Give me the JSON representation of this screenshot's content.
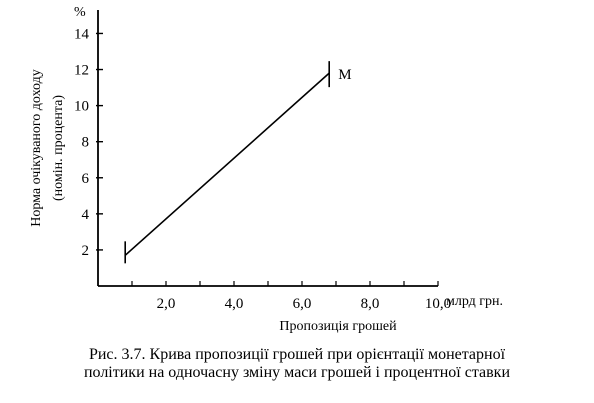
{
  "chart_data": {
    "type": "line",
    "y_unit": "%",
    "ylabel_line1": "Норма очікуваного доходу",
    "ylabel_line2": "(номін. процента)",
    "xlabel": "Пропозиція грошей",
    "x_unit": "млрд грн.",
    "xlim": [
      0,
      10.0
    ],
    "ylim": [
      0,
      14
    ],
    "x_ticks": [
      2.0,
      4.0,
      6.0,
      8.0,
      10.0
    ],
    "x_tick_labels": [
      "2,0",
      "4,0",
      "6,0",
      "8,0",
      "10,0"
    ],
    "y_ticks": [
      2,
      4,
      6,
      8,
      10,
      12,
      14
    ],
    "y_tick_labels": [
      "2",
      "4",
      "6",
      "8",
      "10",
      "12",
      "14"
    ],
    "series": [
      {
        "name": "M",
        "x": [
          0.8,
          6.8
        ],
        "y": [
          1.7,
          11.8
        ]
      }
    ],
    "grid": false
  },
  "caption": {
    "line1": "Рис. 3.7. Крива пропозиції грошей при орієнтації монетарної",
    "line2": "політики на одночасну зміну маси грошей і процентної ставки"
  }
}
